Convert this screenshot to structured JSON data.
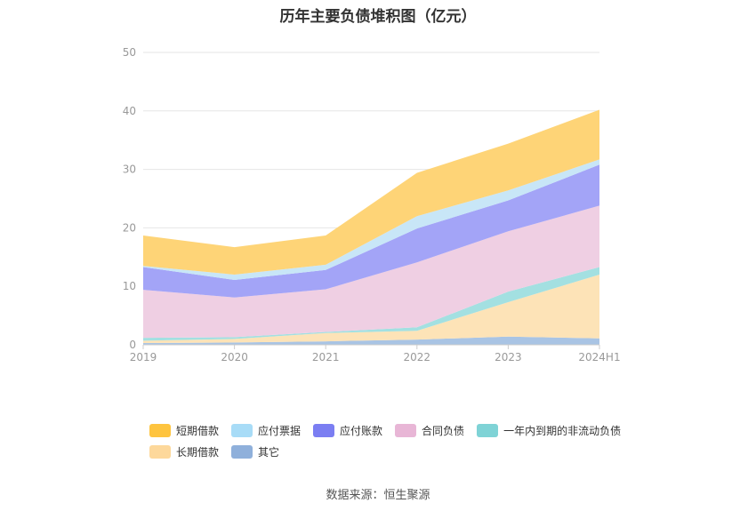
{
  "title": "历年主要负债堆积图（亿元）",
  "source": "数据来源：恒生聚源",
  "chart_data": {
    "type": "area",
    "stacked": true,
    "title": "历年主要负债堆积图（亿元）",
    "x": [
      "2019",
      "2020",
      "2021",
      "2022",
      "2023",
      "2024H1"
    ],
    "ylim": [
      0,
      50
    ],
    "yticks": [
      0,
      10,
      20,
      30,
      40,
      50
    ],
    "grid": true,
    "legend_position": "bottom",
    "series": [
      {
        "name": "其它",
        "color": "#a9c4e4",
        "legend_color": "#8fb0db",
        "values": [
          0.3,
          0.4,
          0.6,
          0.9,
          1.4,
          1.1
        ]
      },
      {
        "name": "长期借款",
        "color": "#fde3b7",
        "legend_color": "#fdd89b",
        "values": [
          0.4,
          0.6,
          1.4,
          1.5,
          5.9,
          10.9
        ]
      },
      {
        "name": "一年内到期的非流动负债",
        "color": "#a3e0e1",
        "legend_color": "#7fd3d6",
        "values": [
          0.5,
          0.3,
          0.2,
          0.6,
          1.8,
          1.3
        ]
      },
      {
        "name": "合同负债",
        "color": "#efcfe3",
        "legend_color": "#e8b6d6",
        "values": [
          8.2,
          6.8,
          7.3,
          11.1,
          10.3,
          10.5
        ]
      },
      {
        "name": "应付账款",
        "color": "#a3a4f7",
        "legend_color": "#7b7ef2",
        "values": [
          3.9,
          3.0,
          3.3,
          5.8,
          5.3,
          7.0
        ]
      },
      {
        "name": "应付票据",
        "color": "#c8e6f7",
        "legend_color": "#a8dcf7",
        "values": [
          0.2,
          0.9,
          0.9,
          2.1,
          1.7,
          0.9
        ]
      },
      {
        "name": "短期借款",
        "color": "#fed477",
        "legend_color": "#fec43f",
        "values": [
          5.2,
          4.7,
          5.0,
          7.4,
          8.0,
          8.5
        ]
      }
    ],
    "legend_order": [
      "短期借款",
      "应付票据",
      "应付账款",
      "合同负债",
      "一年内到期的非流动负债",
      "长期借款",
      "其它"
    ]
  }
}
